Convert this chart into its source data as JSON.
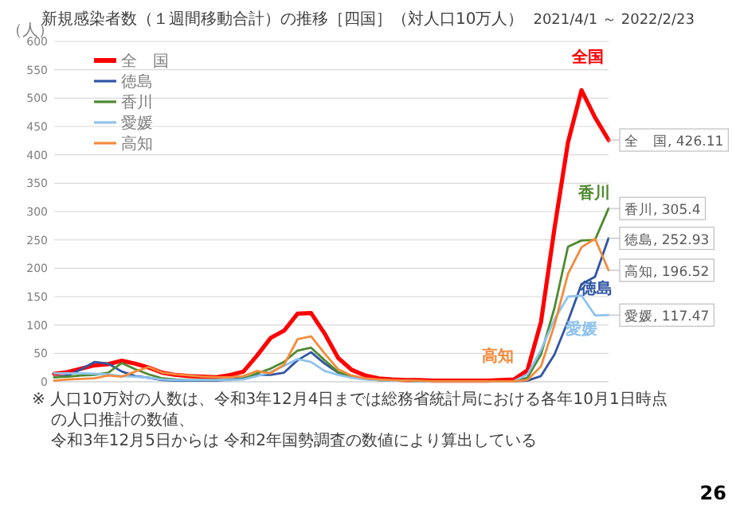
{
  "chart_data": {
    "type": "line",
    "title": "新規感染者数（１週間移動合計）の推移［四国］（対人口10万人）",
    "subtitle": "2021/4/1 ～ 2022/2/23",
    "ylabel": "（人）",
    "categories": [
      null,
      null,
      null,
      null,
      null,
      null,
      null,
      null,
      null,
      null,
      null,
      null,
      null,
      null,
      null,
      null,
      null,
      null,
      null,
      null,
      null,
      null,
      null,
      null,
      null,
      null,
      null,
      null,
      null,
      null,
      null,
      null,
      null,
      null,
      null,
      null,
      null,
      null,
      null,
      null,
      null,
      null
    ],
    "series": [
      {
        "name": "全　国",
        "color": "#ff0000",
        "values": [
          14,
          17,
          23,
          29,
          31,
          37,
          32,
          25,
          16,
          12,
          10,
          9,
          8,
          12,
          18,
          46,
          77,
          90,
          120,
          121,
          85,
          42,
          21,
          11,
          6,
          4,
          3,
          3,
          2,
          2,
          2,
          2,
          2,
          3,
          4,
          20,
          105,
          270,
          422,
          514,
          466,
          426.11
        ]
      },
      {
        "name": "徳島",
        "color": "#2f55a4",
        "values": [
          8,
          11,
          22,
          35,
          32,
          18,
          10,
          7,
          3,
          2,
          2,
          2,
          2,
          4,
          6,
          12,
          12,
          16,
          38,
          52,
          32,
          16,
          8,
          5,
          3,
          2,
          2,
          1,
          1,
          1,
          1,
          1,
          1,
          1,
          1,
          2,
          10,
          48,
          107,
          172,
          185,
          252.93
        ]
      },
      {
        "name": "香川",
        "color": "#4e8a2f",
        "values": [
          8,
          9,
          11,
          12,
          16,
          33,
          22,
          13,
          6,
          4,
          3,
          3,
          3,
          3,
          5,
          15,
          23,
          35,
          55,
          60,
          38,
          17,
          9,
          5,
          3,
          2,
          2,
          1,
          1,
          1,
          1,
          1,
          1,
          1,
          1,
          7,
          48,
          130,
          238,
          249,
          250,
          305.4
        ]
      },
      {
        "name": "愛媛",
        "color": "#8fc3ee",
        "values": [
          15,
          15,
          15,
          14,
          13,
          10,
          9,
          7,
          4,
          3,
          3,
          3,
          3,
          3,
          4,
          10,
          17,
          28,
          40,
          35,
          19,
          12,
          7,
          4,
          3,
          2,
          2,
          1,
          1,
          1,
          1,
          1,
          1,
          1,
          1,
          13,
          56,
          110,
          150,
          152,
          117,
          117.47
        ]
      },
      {
        "name": "高知",
        "color": "#f28b3c",
        "values": [
          2,
          4,
          5,
          6,
          11,
          9,
          18,
          26,
          16,
          13,
          11,
          9,
          8,
          8,
          10,
          19,
          15,
          30,
          75,
          80,
          50,
          22,
          11,
          6,
          4,
          3,
          2,
          2,
          1,
          1,
          1,
          1,
          1,
          1,
          1,
          3,
          27,
          100,
          190,
          237,
          252,
          196.52
        ]
      }
    ],
    "ylim": [
      0,
      600
    ],
    "yticks": [
      0,
      50,
      100,
      150,
      200,
      250,
      300,
      350,
      400,
      450,
      500,
      550,
      600
    ],
    "grid": "y",
    "legend": "top left",
    "tick_labels": "y",
    "line_style": "solid",
    "annotations": [
      "全国",
      "香川",
      "徳島",
      "愛媛",
      "高知",
      "全　国, 426.11",
      "香川, 305.4",
      "徳島, 252.93",
      "高知, 196.52",
      "愛媛, 117.47",
      "※ 人口10万対の人数は、令和3年12月4日までは総務省統計局における各年10月1日時点の人口推計の数値、",
      "令和3年12月5日からは 令和2年国勢調査の数値により算出している",
      "26"
    ]
  }
}
